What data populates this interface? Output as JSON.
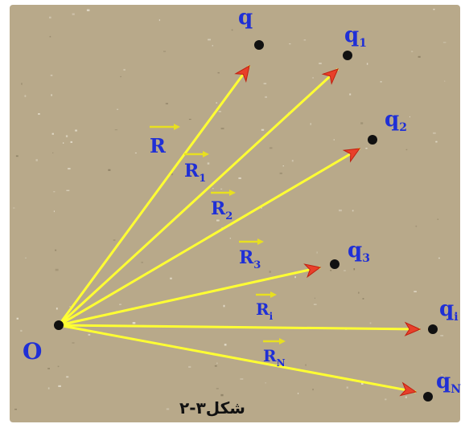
{
  "origin_label": "O",
  "charges": [
    {
      "name": "q",
      "sub": ""
    },
    {
      "name": "q",
      "sub": "1"
    },
    {
      "name": "q",
      "sub": "2"
    },
    {
      "name": "q",
      "sub": "3"
    },
    {
      "name": "q",
      "sub": "i"
    },
    {
      "name": "q",
      "sub": "N"
    }
  ],
  "vectors": [
    {
      "name": "R",
      "sub": ""
    },
    {
      "name": "R",
      "sub": "1"
    },
    {
      "name": "R",
      "sub": "2"
    },
    {
      "name": "R",
      "sub": "3"
    },
    {
      "name": "R",
      "sub": "i"
    },
    {
      "name": "R",
      "sub": "N"
    }
  ],
  "caption": "شکل۳-۲",
  "colors": {
    "background": "#b8a98a",
    "vector_line": "#ffff33",
    "arrowhead": "#e8402a",
    "label": "#1f2fd6",
    "point": "#111111"
  }
}
